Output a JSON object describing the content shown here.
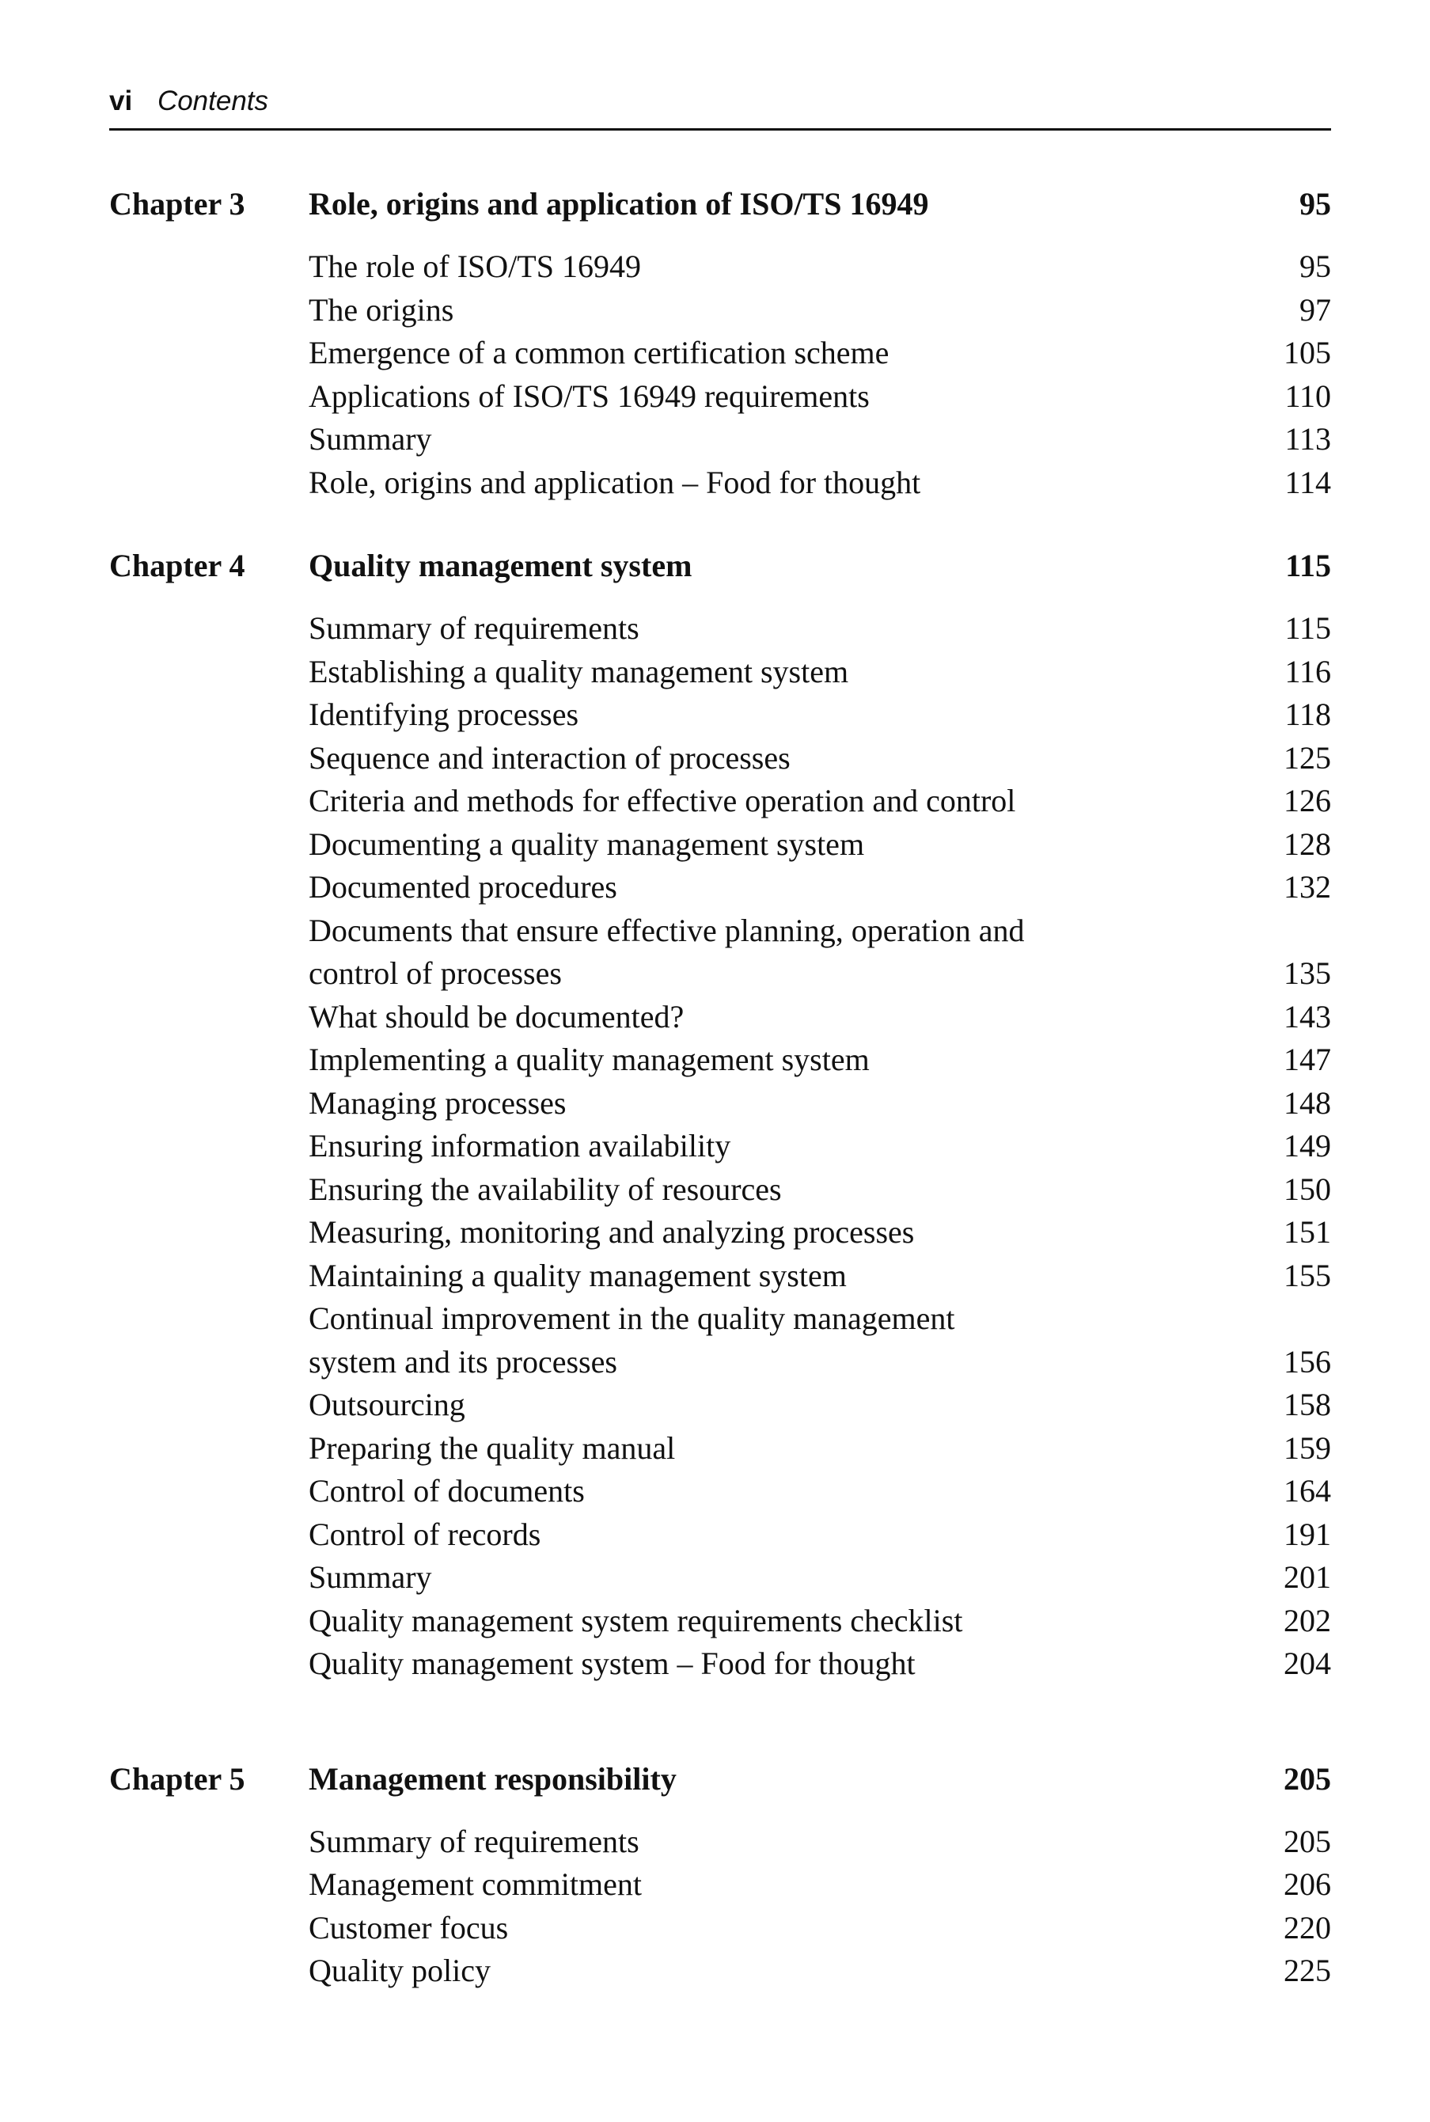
{
  "header": {
    "folio": "vi",
    "running_title": "Contents"
  },
  "chapters": [
    {
      "label": "Chapter 3",
      "title": "Role, origins and application of ISO/TS 16949",
      "page": "95",
      "entries": [
        {
          "title": "The role of ISO/TS 16949",
          "page": "95"
        },
        {
          "title": "The origins",
          "page": "97"
        },
        {
          "title": "Emergence of a common certification scheme",
          "page": "105"
        },
        {
          "title": "Applications of ISO/TS 16949 requirements",
          "page": "110"
        },
        {
          "title": "Summary",
          "page": "113"
        },
        {
          "title": "Role, origins and application – Food for thought",
          "page": "114"
        }
      ]
    },
    {
      "label": "Chapter 4",
      "title": "Quality management system",
      "page": "115",
      "entries": [
        {
          "title": "Summary of requirements",
          "page": "115"
        },
        {
          "title": "Establishing a quality management system",
          "page": "116"
        },
        {
          "title": "Identifying processes",
          "page": "118"
        },
        {
          "title": "Sequence and interaction of processes",
          "page": "125"
        },
        {
          "title": "Criteria and methods for effective operation and control",
          "page": "126"
        },
        {
          "title": "Documenting a quality management system",
          "page": "128"
        },
        {
          "title": "Documented procedures",
          "page": "132"
        },
        {
          "title": "Documents that ensure effective planning, operation and\ncontrol of processes",
          "page": "135"
        },
        {
          "title": "What should be documented?",
          "page": "143"
        },
        {
          "title": "Implementing a quality management system",
          "page": "147"
        },
        {
          "title": "Managing processes",
          "page": "148"
        },
        {
          "title": "Ensuring information availability",
          "page": "149"
        },
        {
          "title": "Ensuring the availability of resources",
          "page": "150"
        },
        {
          "title": "Measuring, monitoring and analyzing processes",
          "page": "151"
        },
        {
          "title": "Maintaining a quality management system",
          "page": "155"
        },
        {
          "title": "Continual improvement in the quality management\nsystem and its processes",
          "page": "156"
        },
        {
          "title": "Outsourcing",
          "page": "158"
        },
        {
          "title": "Preparing the quality manual",
          "page": "159"
        },
        {
          "title": "Control of documents",
          "page": "164"
        },
        {
          "title": "Control of records",
          "page": "191"
        },
        {
          "title": "Summary",
          "page": "201"
        },
        {
          "title": "Quality management system requirements checklist",
          "page": "202"
        },
        {
          "title": "Quality management system – Food for thought",
          "page": "204"
        }
      ]
    },
    {
      "label": "Chapter 5",
      "title": "Management responsibility",
      "page": "205",
      "entries": [
        {
          "title": "Summary of requirements",
          "page": "205"
        },
        {
          "title": "Management commitment",
          "page": "206"
        },
        {
          "title": "Customer focus",
          "page": "220"
        },
        {
          "title": "Quality policy",
          "page": "225"
        }
      ]
    }
  ]
}
